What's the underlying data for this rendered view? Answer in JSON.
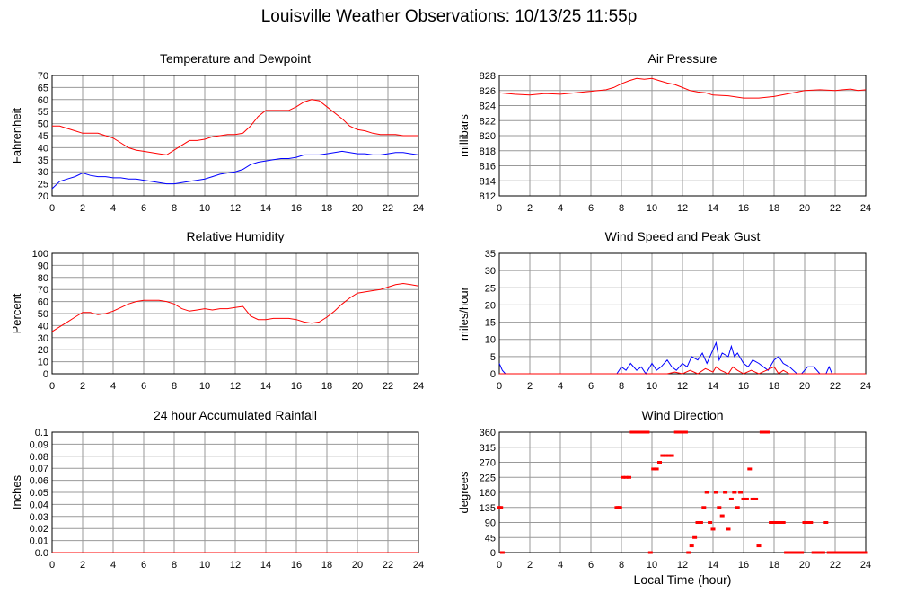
{
  "page_title": "Louisville Weather Observations: 10/13/25 11:55p",
  "colors": {
    "red": "#ff0000",
    "blue": "#0000ff",
    "grid": "#999999",
    "frame": "#000000"
  },
  "chart_data": [
    {
      "type": "line",
      "title": "Temperature and Dewpoint",
      "xlabel": "",
      "ylabel": "Fahrenheit",
      "xlim": [
        0,
        24
      ],
      "ylim": [
        20,
        70
      ],
      "x_ticks": [
        0,
        2,
        4,
        6,
        8,
        10,
        12,
        14,
        16,
        18,
        20,
        22,
        24
      ],
      "y_ticks": [
        20,
        25,
        30,
        35,
        40,
        45,
        50,
        55,
        60,
        65,
        70
      ],
      "grid": true,
      "series": [
        {
          "color": "#ff0000",
          "x": [
            0,
            0.5,
            1,
            1.5,
            2,
            2.5,
            3,
            3.5,
            4,
            4.5,
            5,
            5.5,
            6,
            6.5,
            7,
            7.5,
            8,
            8.5,
            9,
            9.5,
            10,
            10.5,
            11,
            11.5,
            12,
            12.5,
            13,
            13.5,
            14,
            14.5,
            15,
            15.5,
            16,
            16.5,
            17,
            17.5,
            18,
            18.5,
            19,
            19.5,
            20,
            20.5,
            21,
            21.5,
            22,
            22.5,
            23,
            23.5,
            24
          ],
          "y": [
            49,
            49,
            48,
            47,
            46,
            46,
            46,
            45,
            44,
            42,
            40,
            39,
            38.5,
            38,
            37.5,
            37,
            39,
            41,
            43,
            43,
            43.5,
            44.5,
            45,
            45.5,
            45.5,
            46,
            49,
            53,
            55.5,
            55.5,
            55.5,
            55.5,
            57,
            59,
            60,
            59.5,
            57,
            54.5,
            52,
            49,
            47.5,
            47,
            46,
            45.5,
            45.5,
            45.5,
            45,
            45,
            45
          ]
        },
        {
          "color": "#0000ff",
          "x": [
            0,
            0.5,
            1,
            1.5,
            2,
            2.5,
            3,
            3.5,
            4,
            4.5,
            5,
            5.5,
            6,
            6.5,
            7,
            7.5,
            8,
            8.5,
            9,
            9.5,
            10,
            10.5,
            11,
            11.5,
            12,
            12.5,
            13,
            13.5,
            14,
            14.5,
            15,
            15.5,
            16,
            16.5,
            17,
            17.5,
            18,
            18.5,
            19,
            19.5,
            20,
            20.5,
            21,
            21.5,
            22,
            22.5,
            23,
            23.5,
            24
          ],
          "y": [
            23,
            26,
            27,
            28,
            29.5,
            28.5,
            28,
            28,
            27.5,
            27.5,
            27,
            27,
            26.5,
            26,
            25.5,
            25,
            25,
            25.5,
            26,
            26.5,
            27,
            28,
            29,
            29.5,
            30,
            31,
            33,
            34,
            34.5,
            35,
            35.5,
            35.5,
            36,
            37,
            37,
            37,
            37.5,
            38,
            38.5,
            38,
            37.5,
            37.5,
            37,
            37,
            37.5,
            38,
            38,
            37.5,
            37
          ]
        }
      ]
    },
    {
      "type": "line",
      "title": "Air Pressure",
      "xlabel": "",
      "ylabel": "millibars",
      "xlim": [
        0,
        24
      ],
      "ylim": [
        812,
        828
      ],
      "x_ticks": [
        0,
        2,
        4,
        6,
        8,
        10,
        12,
        14,
        16,
        18,
        20,
        22,
        24
      ],
      "y_ticks": [
        812,
        814,
        816,
        818,
        820,
        822,
        824,
        826,
        828
      ],
      "grid": true,
      "series": [
        {
          "color": "#ff0000",
          "x": [
            0,
            1,
            2,
            3,
            4,
            5,
            6,
            7,
            7.5,
            8,
            8.5,
            9,
            9.5,
            10,
            10.5,
            11,
            11.5,
            12,
            12.5,
            13,
            13.5,
            14,
            15,
            16,
            17,
            18,
            19,
            20,
            21,
            22,
            22.5,
            23,
            23.5,
            24
          ],
          "y": [
            825.7,
            825.5,
            825.4,
            825.6,
            825.5,
            825.7,
            825.9,
            826.1,
            826.4,
            826.9,
            827.3,
            827.6,
            827.5,
            827.6,
            827.3,
            827.0,
            826.8,
            826.4,
            826.0,
            825.8,
            825.7,
            825.4,
            825.3,
            825.0,
            825.0,
            825.2,
            825.6,
            826.0,
            826.1,
            826.0,
            826.1,
            826.2,
            826.0,
            826.1
          ]
        }
      ]
    },
    {
      "type": "line",
      "title": "Relative Humidity",
      "xlabel": "",
      "ylabel": "Percent",
      "xlim": [
        0,
        24
      ],
      "ylim": [
        0,
        100
      ],
      "x_ticks": [
        0,
        2,
        4,
        6,
        8,
        10,
        12,
        14,
        16,
        18,
        20,
        22,
        24
      ],
      "y_ticks": [
        0,
        10,
        20,
        30,
        40,
        50,
        60,
        70,
        80,
        90,
        100
      ],
      "grid": true,
      "series": [
        {
          "color": "#ff0000",
          "x": [
            0,
            0.5,
            1,
            1.5,
            2,
            2.5,
            3,
            3.5,
            4,
            4.5,
            5,
            5.5,
            6,
            6.5,
            7,
            7.5,
            8,
            8.5,
            9,
            9.5,
            10,
            10.5,
            11,
            11.5,
            12,
            12.5,
            13,
            13.5,
            14,
            14.5,
            15,
            15.5,
            16,
            16.5,
            17,
            17.5,
            18,
            18.5,
            19,
            19.5,
            20,
            20.5,
            21,
            21.5,
            22,
            22.5,
            23,
            23.5,
            24
          ],
          "y": [
            35,
            39,
            43,
            47,
            51,
            51,
            49,
            50,
            52,
            55,
            58,
            60,
            61,
            61,
            61,
            60,
            58,
            54,
            52,
            53,
            54,
            53,
            54,
            54,
            55,
            56,
            48,
            45,
            45,
            46,
            46,
            46,
            45,
            43,
            42,
            43,
            47,
            52,
            58,
            63,
            67,
            68,
            69,
            70,
            72,
            74,
            75,
            74,
            73
          ]
        }
      ]
    },
    {
      "type": "line",
      "title": "Wind Speed and Peak Gust",
      "xlabel": "",
      "ylabel": "miles/hour",
      "xlim": [
        0,
        24
      ],
      "ylim": [
        0,
        35
      ],
      "x_ticks": [
        0,
        2,
        4,
        6,
        8,
        10,
        12,
        14,
        16,
        18,
        20,
        22,
        24
      ],
      "y_ticks": [
        0,
        5,
        10,
        15,
        20,
        25,
        30,
        35
      ],
      "grid": true,
      "series": [
        {
          "color": "#0000ff",
          "x": [
            0,
            0.2,
            0.4,
            7.7,
            8,
            8.3,
            8.6,
            9,
            9.3,
            9.6,
            10,
            10.3,
            10.6,
            11,
            11.3,
            11.6,
            12,
            12.3,
            12.6,
            13,
            13.3,
            13.6,
            14,
            14.2,
            14.4,
            14.6,
            15,
            15.2,
            15.4,
            15.6,
            16,
            16.3,
            16.6,
            17,
            17.3,
            17.6,
            18,
            18.3,
            18.6,
            19,
            19.5,
            19.8,
            20.2,
            20.6,
            21,
            21.4,
            21.6,
            21.8,
            24
          ],
          "y": [
            3,
            1,
            0,
            0,
            2,
            1,
            3,
            1,
            2,
            0,
            3,
            1,
            2,
            4,
            2,
            1,
            3,
            2,
            5,
            4,
            6,
            3,
            7,
            9,
            4,
            6,
            5,
            8,
            5,
            6,
            3,
            2,
            4,
            3,
            2,
            1,
            4,
            5,
            3,
            2,
            0,
            0,
            2,
            2,
            0,
            0,
            2,
            0,
            0
          ]
        },
        {
          "color": "#ff0000",
          "x": [
            0,
            11,
            11.5,
            12,
            12.5,
            13,
            13.5,
            14,
            14.2,
            14.5,
            15,
            15.3,
            15.6,
            16,
            16.5,
            17,
            17.5,
            18,
            18.3,
            18.6,
            19,
            24
          ],
          "y": [
            0,
            0,
            0.5,
            0,
            1,
            0,
            1.5,
            0.5,
            2,
            1,
            0,
            2,
            1,
            0,
            1,
            0,
            1,
            2,
            0,
            1,
            0,
            0
          ]
        }
      ]
    },
    {
      "type": "line",
      "title": "24 hour Accumulated Rainfall",
      "xlabel": "",
      "ylabel": "Inches",
      "xlim": [
        0,
        24
      ],
      "ylim": [
        0,
        0.1
      ],
      "x_ticks": [
        0,
        2,
        4,
        6,
        8,
        10,
        12,
        14,
        16,
        18,
        20,
        22,
        24
      ],
      "y_ticks": [
        "0.0",
        "0.01",
        "0.02",
        "0.03",
        "0.04",
        "0.05",
        "0.06",
        "0.07",
        "0.08",
        "0.09",
        "0.1"
      ],
      "grid": true,
      "series": [
        {
          "color": "#ff0000",
          "x": [
            0,
            24
          ],
          "y": [
            0,
            0
          ]
        }
      ]
    },
    {
      "type": "scatter",
      "title": "Wind Direction",
      "xlabel": "Local Time (hour)",
      "ylabel": "degrees",
      "xlim": [
        0,
        24
      ],
      "ylim": [
        0,
        360
      ],
      "x_ticks": [
        0,
        2,
        4,
        6,
        8,
        10,
        12,
        14,
        16,
        18,
        20,
        22,
        24
      ],
      "y_ticks": [
        0,
        45,
        90,
        135,
        180,
        225,
        270,
        315,
        360
      ],
      "grid": true,
      "series": [
        {
          "color": "#ff0000",
          "x": [
            0,
            0.1,
            0.2,
            7.7,
            7.8,
            7.9,
            8.1,
            8.3,
            8.5,
            8.7,
            8.9,
            9.1,
            9.3,
            9.5,
            9.7,
            9.9,
            10.1,
            10.3,
            10.5,
            10.7,
            10.9,
            11.1,
            11.3,
            11.6,
            11.8,
            12,
            12.2,
            12.4,
            12.6,
            12.8,
            13,
            13.2,
            13.4,
            13.6,
            13.8,
            14,
            14.2,
            14.4,
            14.6,
            14.8,
            15,
            15.2,
            15.4,
            15.6,
            15.8,
            16,
            16.2,
            16.4,
            16.6,
            16.8,
            17,
            17.2,
            17.4,
            17.6,
            17.8,
            18,
            18.2,
            18.4,
            18.6,
            18.8,
            19,
            19.2,
            19.4,
            19.6,
            19.8,
            20,
            20.2,
            20.4,
            20.6,
            20.8,
            21,
            21.2,
            21.4,
            21.6,
            21.8,
            22,
            22.2,
            22.4,
            22.6,
            22.8,
            23,
            23.2,
            23.4,
            23.6,
            23.8,
            24
          ],
          "y": [
            135,
            135,
            0,
            135,
            135,
            135,
            225,
            225,
            225,
            360,
            360,
            360,
            360,
            360,
            360,
            0,
            250,
            250,
            270,
            290,
            290,
            290,
            290,
            360,
            360,
            360,
            360,
            0,
            20,
            45,
            90,
            90,
            135,
            180,
            90,
            70,
            180,
            135,
            110,
            180,
            70,
            160,
            180,
            135,
            180,
            160,
            160,
            250,
            160,
            160,
            20,
            360,
            360,
            360,
            90,
            90,
            90,
            90,
            90,
            0,
            0,
            0,
            0,
            0,
            0,
            90,
            90,
            90,
            0,
            0,
            0,
            0,
            90,
            0,
            0,
            0,
            0,
            0,
            0,
            0,
            0,
            0,
            0,
            0,
            0,
            0
          ]
        }
      ]
    }
  ]
}
